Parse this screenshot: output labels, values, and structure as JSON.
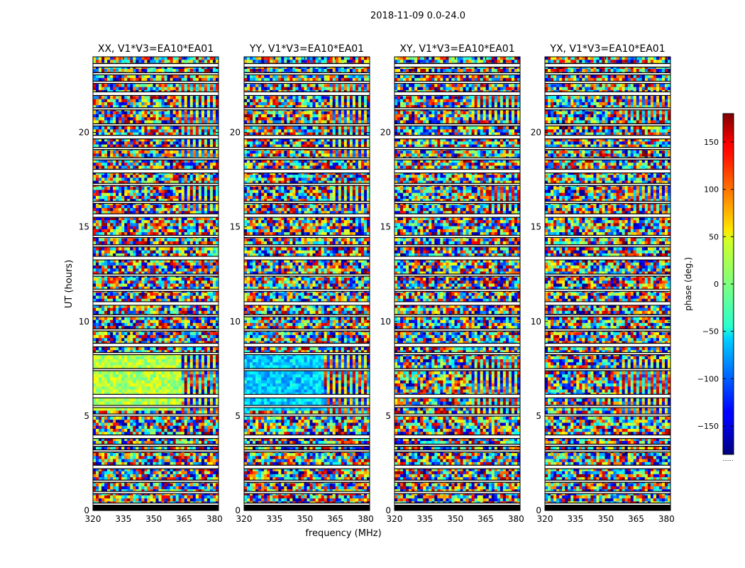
{
  "chart_data": {
    "type": "heatmap",
    "suptitle": "2018-11-09 0.0-24.0",
    "xlabel": "frequency (MHz)",
    "ylabel": "UT (hours)",
    "xlim": [
      320,
      382
    ],
    "ylim": [
      0,
      24
    ],
    "xticks": [
      320,
      335,
      350,
      365,
      380
    ],
    "xtick_labels": [
      "320",
      "335",
      "350",
      "365",
      "380"
    ],
    "yticks": [
      0,
      5,
      10,
      15,
      20
    ],
    "ytick_labels": [
      "0",
      "5",
      "10",
      "15",
      "20"
    ],
    "colorbar": {
      "label": "phase (deg.)",
      "range": [
        -180,
        180
      ],
      "colormap": "jet",
      "ticks": [
        -150,
        -100,
        -50,
        0,
        50,
        100,
        150
      ],
      "tick_labels": [
        "−150",
        "−100",
        "−50",
        "0",
        "50",
        "100",
        "150"
      ],
      "footer": "......"
    },
    "panels": [
      {
        "title": "XX, V1*V3=EA10*EA01"
      },
      {
        "title": "YY, V1*V3=EA10*EA01"
      },
      {
        "title": "XY, V1*V3=EA10*EA01"
      },
      {
        "title": "YX, V1*V3=EA10*EA01"
      }
    ],
    "flagged_ut_hours": [
      0.3,
      0.95,
      1.55,
      2.3,
      3.15,
      3.45,
      3.9,
      5.05,
      5.5,
      6.05,
      7.45,
      8.3,
      8.75,
      9.55,
      10.3,
      10.95,
      11.65,
      12.45,
      13.35,
      14.0,
      14.5,
      15.6,
      16.3,
      17.25,
      17.95,
      18.6,
      19.15,
      19.75,
      20.4,
      21.25,
      22.05,
      22.65,
      23.1,
      23.55
    ],
    "colors": {
      "background": "#ffffff",
      "frame": "#000000",
      "flag_white": "#ffffff",
      "flag_black": "#000000"
    }
  }
}
